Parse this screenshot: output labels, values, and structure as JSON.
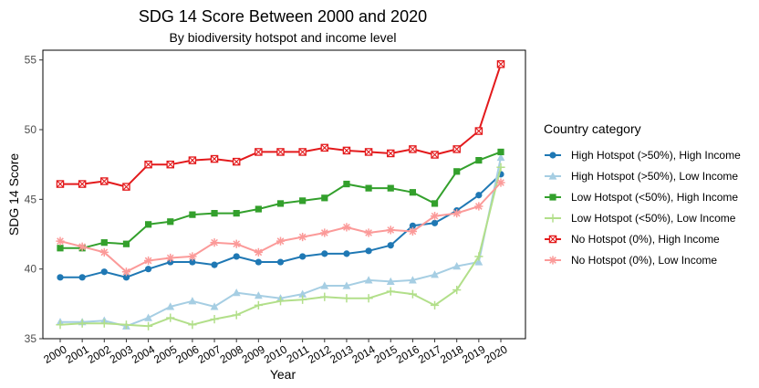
{
  "chart_data": {
    "type": "line",
    "title": "SDG 14 Score Between 2000 and 2020",
    "subtitle": "By biodiversity hotspot and income level",
    "xlabel": "Year",
    "ylabel": "SDG 14 Score",
    "ylim": [
      35,
      55.7
    ],
    "yticks": [
      35,
      40,
      45,
      50,
      55
    ],
    "grid": false,
    "legend_title": "Country category",
    "legend_position": "right",
    "x": [
      "2000",
      "2001",
      "2002",
      "2003",
      "2004",
      "2005",
      "2006",
      "2007",
      "2008",
      "2009",
      "2010",
      "2011",
      "2012",
      "2013",
      "2014",
      "2015",
      "2016",
      "2017",
      "2018",
      "2019",
      "2020"
    ],
    "series": [
      {
        "name": "High Hotspot (>50%), High Income",
        "color": "#1f78b4",
        "marker": "circle",
        "values": [
          39.4,
          39.4,
          39.8,
          39.4,
          40.0,
          40.5,
          40.5,
          40.3,
          40.9,
          40.5,
          40.5,
          40.9,
          41.1,
          41.1,
          41.3,
          41.7,
          43.1,
          43.3,
          44.2,
          45.3,
          46.8
        ]
      },
      {
        "name": "High Hotspot (>50%), Low Income",
        "color": "#a6cee3",
        "marker": "triangle",
        "values": [
          36.2,
          36.2,
          36.3,
          35.9,
          36.5,
          37.3,
          37.7,
          37.3,
          38.3,
          38.1,
          37.9,
          38.2,
          38.8,
          38.8,
          39.2,
          39.1,
          39.2,
          39.6,
          40.2,
          40.5,
          48.0
        ]
      },
      {
        "name": "Low Hotspot (<50%), High Income",
        "color": "#33a02c",
        "marker": "square",
        "values": [
          41.5,
          41.5,
          41.9,
          41.8,
          43.2,
          43.4,
          43.9,
          44.0,
          44.0,
          44.3,
          44.7,
          44.9,
          45.1,
          46.1,
          45.8,
          45.8,
          45.5,
          44.7,
          47.0,
          47.8,
          48.4
        ]
      },
      {
        "name": "Low Hotspot (<50%), Low Income",
        "color": "#b2df8a",
        "marker": "plus",
        "values": [
          36.0,
          36.1,
          36.1,
          36.0,
          35.9,
          36.5,
          36.0,
          36.4,
          36.7,
          37.4,
          37.7,
          37.8,
          38.0,
          37.9,
          37.9,
          38.4,
          38.2,
          37.4,
          38.5,
          40.9,
          47.3
        ]
      },
      {
        "name": "No Hotspot (0%), High Income",
        "color": "#e31a1c",
        "marker": "square-x",
        "values": [
          46.1,
          46.1,
          46.3,
          45.9,
          47.5,
          47.5,
          47.8,
          47.9,
          47.7,
          48.4,
          48.4,
          48.4,
          48.7,
          48.5,
          48.4,
          48.3,
          48.6,
          48.2,
          48.6,
          49.9,
          54.7
        ]
      },
      {
        "name": "No Hotspot (0%), Low Income",
        "color": "#fb9a99",
        "marker": "asterisk",
        "values": [
          42.0,
          41.6,
          41.2,
          39.8,
          40.6,
          40.8,
          40.9,
          41.9,
          41.8,
          41.2,
          42.0,
          42.3,
          42.6,
          43.0,
          42.6,
          42.8,
          42.7,
          43.8,
          44.0,
          44.5,
          46.2
        ]
      }
    ]
  }
}
